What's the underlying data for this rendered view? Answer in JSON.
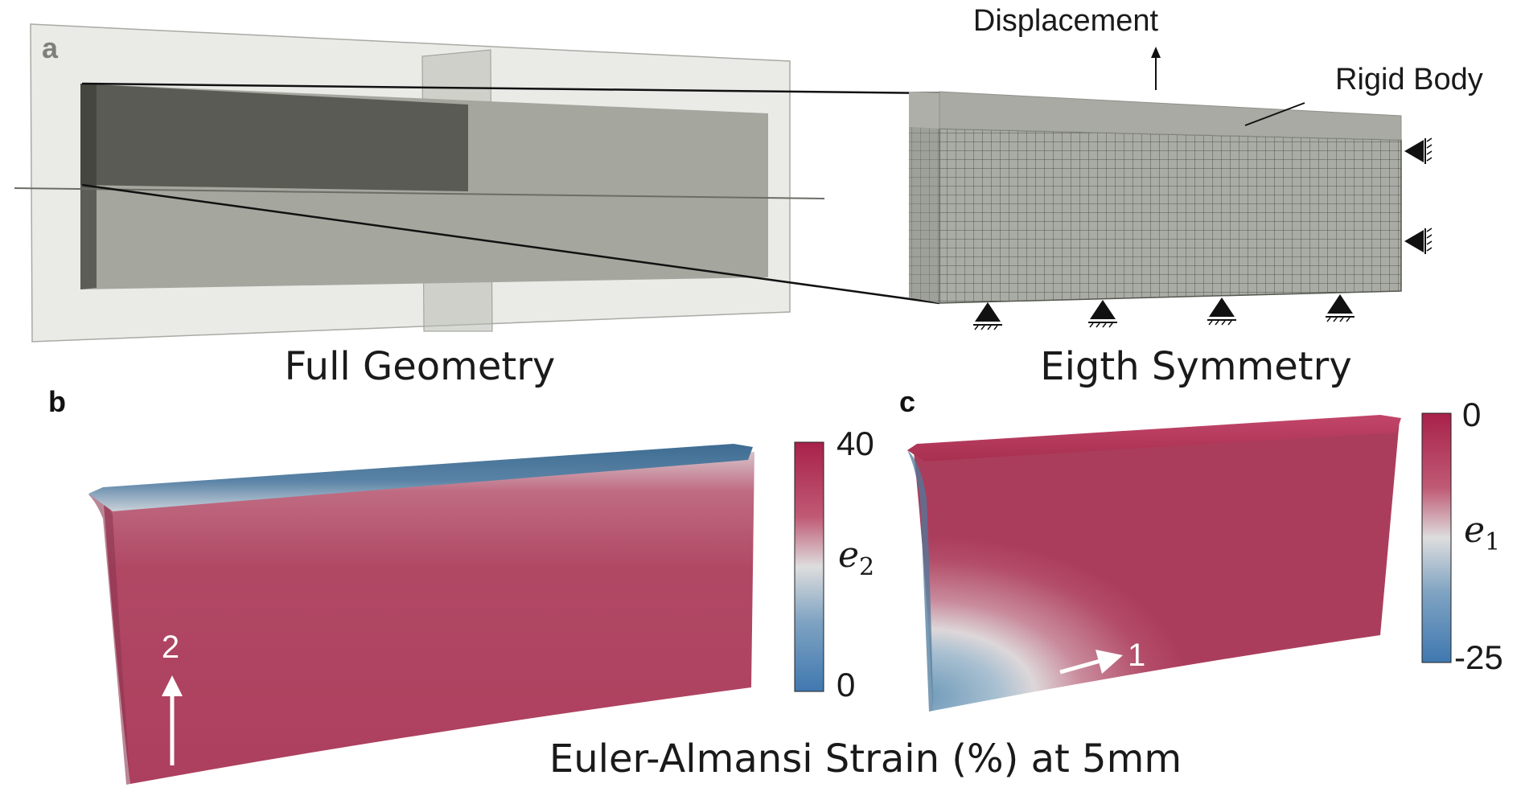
{
  "panels": {
    "a": {
      "letter": "a",
      "left_caption": "Full Geometry",
      "right_caption": "Eigth Symmetry",
      "displacement_label": "Displacement",
      "rigid_body_label": "Rigid Body"
    },
    "b": {
      "letter": "b",
      "direction_label": "2",
      "colorbar": {
        "symbol": "e",
        "subscript": "2",
        "max_label": "40",
        "min_label": "0",
        "colors": [
          "#a8214a",
          "#c05a75",
          "#dddddd",
          "#7fa3c2",
          "#3f78b0"
        ]
      },
      "surface_color": "#b04864",
      "top_edge_color": "#4e7597"
    },
    "c": {
      "letter": "c",
      "direction_label": "1",
      "colorbar": {
        "symbol": "e",
        "subscript": "1",
        "max_label": "0",
        "min_label": "-25",
        "colors": [
          "#a8214a",
          "#c05a75",
          "#dddddd",
          "#7fa3c2",
          "#3f78b0"
        ]
      },
      "surface_color": "#ad3f5e"
    }
  },
  "bottom_caption": "Euler-Almansi Strain (%) at 5mm"
}
